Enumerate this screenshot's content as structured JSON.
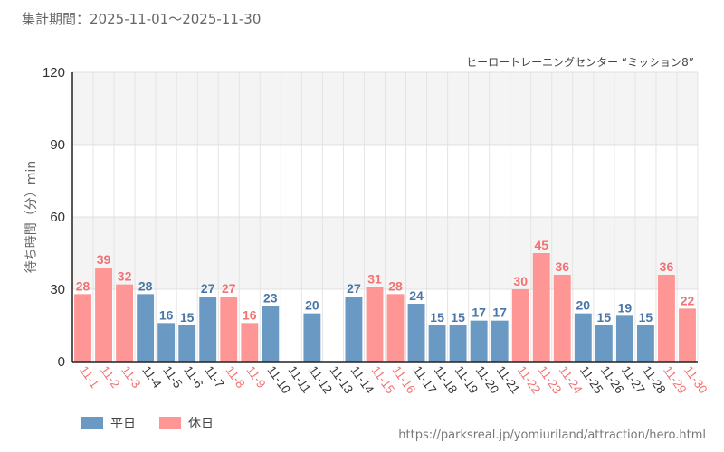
{
  "period": {
    "label": "集計期間：",
    "start": "2025-11-01",
    "sep": "〜",
    "end": "2025-11-30"
  },
  "source": "https://parksreal.jp/yomiuriland/attraction/hero.html",
  "colors": {
    "weekday": "#6a9ac4",
    "holiday": "#ff9696",
    "weekday_label": "#4a76a8",
    "holiday_label": "#f27272",
    "tick_text": "#333333"
  },
  "chart_data": {
    "type": "bar",
    "title": "ヒーロートレーニングセンター “ミッション8”",
    "xlabel": "",
    "ylabel": "待ち時間（分）min",
    "ylim": [
      0,
      120
    ],
    "yticks": [
      "0",
      "30",
      "60",
      "90",
      "120"
    ],
    "categories": [
      "11-1",
      "11-2",
      "11-3",
      "11-4",
      "11-5",
      "11-6",
      "11-7",
      "11-8",
      "11-9",
      "11-10",
      "11-11",
      "11-12",
      "11-13",
      "11-14",
      "11-15",
      "11-16",
      "11-17",
      "11-18",
      "11-19",
      "11-20",
      "11-21",
      "11-22",
      "11-23",
      "11-24",
      "11-25",
      "11-26",
      "11-27",
      "11-28",
      "11-29",
      "11-30"
    ],
    "values": [
      28,
      39,
      32,
      28,
      16,
      15,
      27,
      27,
      16,
      23,
      null,
      20,
      null,
      27,
      31,
      28,
      24,
      15,
      15,
      17,
      17,
      30,
      45,
      36,
      20,
      15,
      19,
      15,
      36,
      22
    ],
    "day_type": [
      "holiday",
      "holiday",
      "holiday",
      "weekday",
      "weekday",
      "weekday",
      "weekday",
      "holiday",
      "holiday",
      "weekday",
      "weekday",
      "weekday",
      "weekday",
      "weekday",
      "holiday",
      "holiday",
      "weekday",
      "weekday",
      "weekday",
      "weekday",
      "weekday",
      "holiday",
      "holiday",
      "holiday",
      "weekday",
      "weekday",
      "weekday",
      "weekday",
      "holiday",
      "holiday"
    ],
    "legend": [
      {
        "name": "平日",
        "key": "weekday"
      },
      {
        "name": "休日",
        "key": "holiday"
      }
    ]
  }
}
